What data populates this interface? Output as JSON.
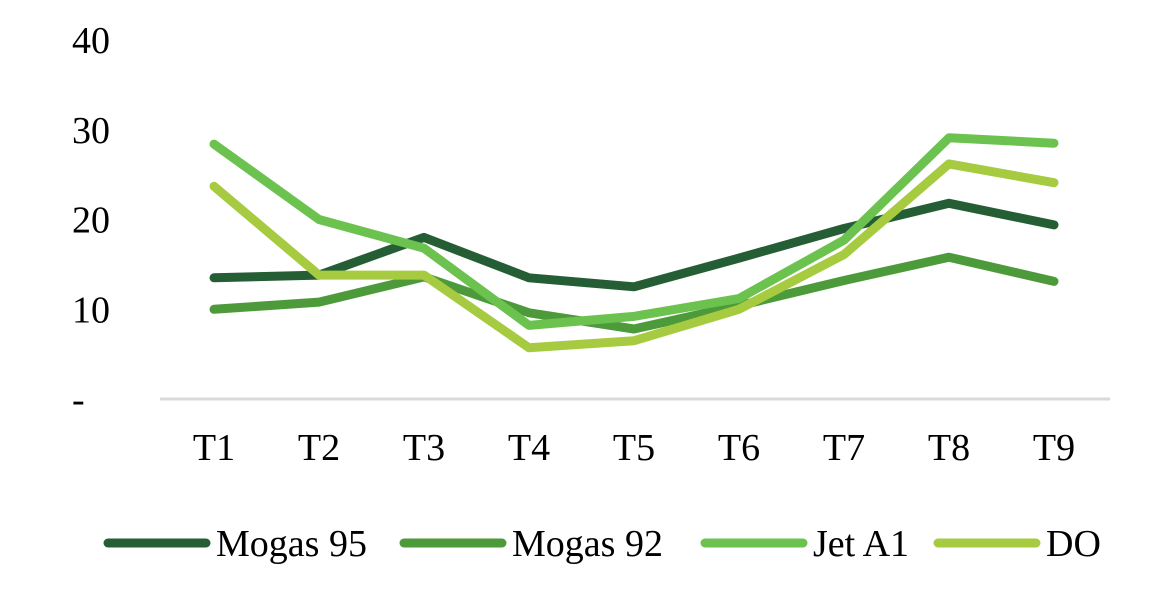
{
  "chart_data": {
    "type": "line",
    "title": "",
    "xlabel": "",
    "ylabel": "",
    "categories": [
      "T1",
      "T2",
      "T3",
      "T4",
      "T5",
      "T6",
      "T7",
      "T8",
      "T9"
    ],
    "y_ticks": [
      {
        "value": 0,
        "label": "-"
      },
      {
        "value": 10,
        "label": "10"
      },
      {
        "value": 20,
        "label": "20"
      },
      {
        "value": 30,
        "label": "30"
      },
      {
        "value": 40,
        "label": "40"
      }
    ],
    "ylim": [
      0,
      40
    ],
    "grid": false,
    "legend_position": "bottom",
    "series": [
      {
        "name": "Mogas 95",
        "color": "#255e34",
        "values": [
          13.5,
          13.8,
          18.0,
          13.5,
          12.5,
          15.7,
          19.0,
          21.8,
          19.4
        ]
      },
      {
        "name": "Mogas 92",
        "color": "#4c9a3a",
        "values": [
          10.0,
          10.8,
          13.6,
          9.6,
          7.8,
          10.4,
          13.2,
          15.8,
          13.1
        ]
      },
      {
        "name": "Jet A1",
        "color": "#6cc24f",
        "values": [
          28.4,
          20.0,
          16.8,
          8.2,
          9.2,
          11.2,
          17.7,
          29.1,
          28.5
        ]
      },
      {
        "name": "DO",
        "color": "#a6cb40",
        "values": [
          23.7,
          13.8,
          13.8,
          5.7,
          6.5,
          10.0,
          16.1,
          26.2,
          24.1
        ]
      }
    ]
  }
}
